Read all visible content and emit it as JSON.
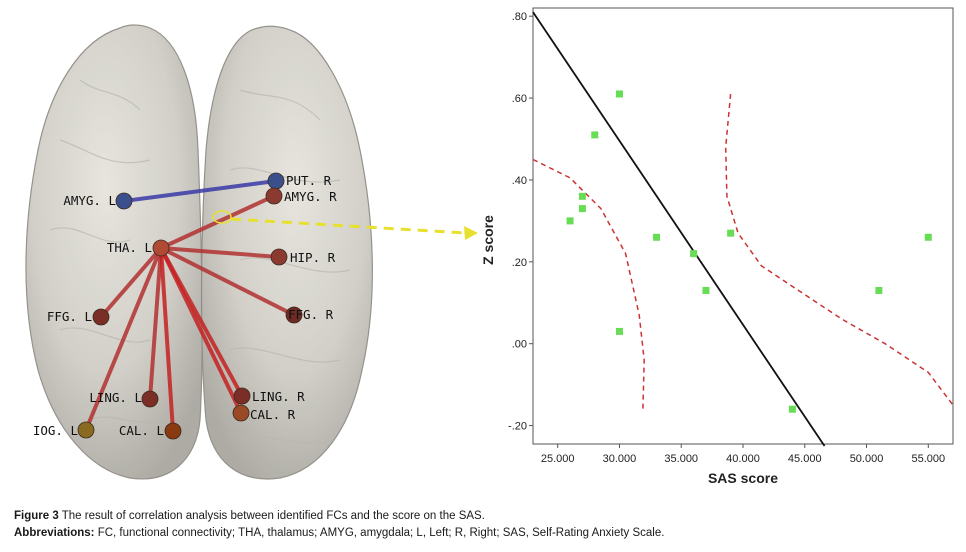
{
  "brain_panel": {
    "nodes": [
      {
        "id": "amyg_l",
        "label": "AMYG. L",
        "color": "#3b4f8c"
      },
      {
        "id": "put_r",
        "label": "PUT. R",
        "color": "#3b4f8c"
      },
      {
        "id": "amyg_r",
        "label": "AMYG. R",
        "color": "#8c3a30"
      },
      {
        "id": "tha_l",
        "label": "THA. L",
        "color": "#b04a35"
      },
      {
        "id": "hip_r",
        "label": "HIP. R",
        "color": "#8c3a30"
      },
      {
        "id": "ffg_l",
        "label": "FFG. L",
        "color": "#7a2e26"
      },
      {
        "id": "ffg_r",
        "label": "FFG. R",
        "color": "#6e2a24"
      },
      {
        "id": "ling_l",
        "label": "LING. L",
        "color": "#7a2e26"
      },
      {
        "id": "ling_r",
        "label": "LING. R",
        "color": "#7a2e26"
      },
      {
        "id": "cal_r",
        "label": "CAL. R",
        "color": "#9a4a25"
      },
      {
        "id": "iog_l",
        "label": "IOG. L",
        "color": "#8a6a20"
      },
      {
        "id": "cal_l",
        "label": "CAL. L",
        "color": "#8a3a10"
      }
    ],
    "edges": [
      {
        "from": "amyg_l",
        "to": "put_r",
        "color": "#3a3aa8"
      },
      {
        "from": "tha_l",
        "to": "amyg_r",
        "color": "#b23232"
      },
      {
        "from": "tha_l",
        "to": "hip_r",
        "color": "#b23232"
      },
      {
        "from": "tha_l",
        "to": "ffg_l",
        "color": "#b23232"
      },
      {
        "from": "tha_l",
        "to": "ffg_r",
        "color": "#b23232"
      },
      {
        "from": "tha_l",
        "to": "ling_l",
        "color": "#b23232"
      },
      {
        "from": "tha_l",
        "to": "ling_r",
        "color": "#c42222"
      },
      {
        "from": "tha_l",
        "to": "cal_r",
        "color": "#c42222"
      },
      {
        "from": "tha_l",
        "to": "iog_l",
        "color": "#b23232"
      },
      {
        "from": "tha_l",
        "to": "cal_l",
        "color": "#c42222"
      }
    ]
  },
  "chart_data": {
    "type": "scatter",
    "title": "",
    "xlabel": "SAS score",
    "ylabel": "Z score",
    "xlim": [
      23.0,
      57.0
    ],
    "ylim": [
      -0.245,
      0.82
    ],
    "xticks": [
      25,
      30,
      35,
      40,
      45,
      50,
      55
    ],
    "xtick_labels": [
      "25.000",
      "30.000",
      "35.000",
      "40.000",
      "45.000",
      "50.000",
      "55.000"
    ],
    "yticks": [
      -0.2,
      0.0,
      0.2,
      0.4,
      0.6,
      0.8
    ],
    "ytick_labels": [
      "-.20",
      ".00",
      ".20",
      ".40",
      ".60",
      ".80"
    ],
    "grid": false,
    "points": [
      {
        "x": 26.0,
        "y": 0.3
      },
      {
        "x": 27.0,
        "y": 0.33
      },
      {
        "x": 27.0,
        "y": 0.36
      },
      {
        "x": 28.0,
        "y": 0.51
      },
      {
        "x": 30.0,
        "y": 0.61
      },
      {
        "x": 30.0,
        "y": 0.03
      },
      {
        "x": 33.0,
        "y": 0.26
      },
      {
        "x": 36.0,
        "y": 0.22
      },
      {
        "x": 37.0,
        "y": 0.13
      },
      {
        "x": 39.0,
        "y": 0.27
      },
      {
        "x": 44.0,
        "y": -0.16
      },
      {
        "x": 51.0,
        "y": 0.13
      },
      {
        "x": 55.0,
        "y": 0.26
      }
    ],
    "fit_line": [
      {
        "x": 23.0,
        "y": 0.81
      },
      {
        "x": 46.6,
        "y": -0.25
      }
    ],
    "ci_lower_curve": [
      {
        "x": 23.0,
        "y": 0.45
      },
      {
        "x": 26.0,
        "y": 0.405
      },
      {
        "x": 28.5,
        "y": 0.33
      },
      {
        "x": 30.5,
        "y": 0.22
      },
      {
        "x": 31.6,
        "y": 0.07
      },
      {
        "x": 32.0,
        "y": -0.04
      },
      {
        "x": 31.9,
        "y": -0.16
      }
    ],
    "ci_upper_curve": [
      {
        "x": 39.0,
        "y": 0.61
      },
      {
        "x": 38.6,
        "y": 0.48
      },
      {
        "x": 38.7,
        "y": 0.36
      },
      {
        "x": 39.6,
        "y": 0.27
      },
      {
        "x": 41.5,
        "y": 0.19
      },
      {
        "x": 44.5,
        "y": 0.13
      },
      {
        "x": 48.0,
        "y": 0.06
      },
      {
        "x": 51.5,
        "y": 0.0
      },
      {
        "x": 55.0,
        "y": -0.07
      },
      {
        "x": 57.0,
        "y": -0.15
      }
    ],
    "colors": {
      "points": "#66dd55",
      "fit_line": "#111111",
      "ci_curves": "#cc3333",
      "arrow": "#e8e030"
    }
  },
  "caption": {
    "figure_label": "Figure 3",
    "figure_text": " The result of correlation analysis between identified FCs and the score on the SAS.",
    "abbrev_label": "Abbreviations:",
    "abbrev_text": " FC, functional connectivity; THA, thalamus; AMYG, amygdala; L, Left; R, Right; SAS, Self-Rating Anxiety Scale."
  }
}
